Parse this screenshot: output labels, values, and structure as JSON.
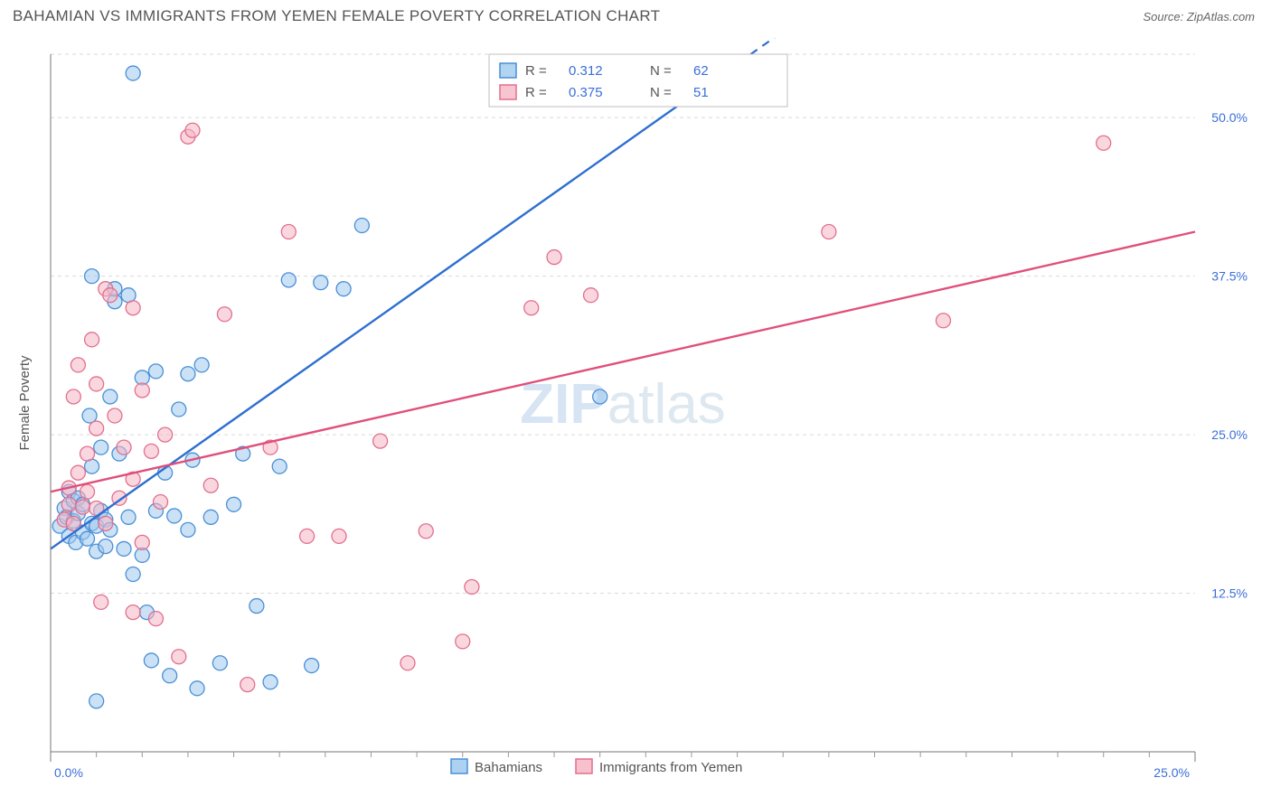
{
  "header": {
    "title": "BAHAMIAN VS IMMIGRANTS FROM YEMEN FEMALE POVERTY CORRELATION CHART",
    "source": "Source: ZipAtlas.com"
  },
  "watermark": {
    "part1": "ZIP",
    "part2": "atlas"
  },
  "chart": {
    "type": "scatter",
    "y_axis_label": "Female Poverty",
    "x_domain": [
      0,
      25
    ],
    "y_domain": [
      0,
      55
    ],
    "x_ticks_major": [
      0,
      25
    ],
    "x_ticks_major_labels": [
      "0.0%",
      "25.0%"
    ],
    "x_ticks_minor": [
      1,
      2,
      3,
      4,
      5,
      6,
      7,
      8,
      9,
      10,
      11,
      12,
      13,
      14,
      15,
      16,
      17,
      18,
      19,
      20,
      21,
      22,
      23,
      24
    ],
    "y_ticks": [
      12.5,
      25.0,
      37.5,
      50.0
    ],
    "y_tick_labels": [
      "12.5%",
      "25.0%",
      "37.5%",
      "50.0%"
    ],
    "y_grid": [
      12.5,
      25.0,
      37.5,
      50.0,
      55.0
    ],
    "background_color": "#ffffff",
    "grid_color": "#d9d9d9",
    "axis_color": "#777777",
    "series": [
      {
        "name": "Bahamians",
        "legend_label": "Bahamians",
        "marker_fill": "#9ec9ee",
        "marker_fill_opacity": 0.55,
        "marker_stroke": "#4a8fd6",
        "marker_r": 8,
        "line_color": "#2d6fd0",
        "line_dash_solid_to_x": 14.0,
        "line_slope": 2.55,
        "line_intercept": 16.0,
        "R": "0.312",
        "N": "62",
        "points": [
          [
            0.2,
            17.8
          ],
          [
            0.3,
            19.2
          ],
          [
            0.35,
            18.5
          ],
          [
            0.4,
            20.5
          ],
          [
            0.4,
            17.0
          ],
          [
            0.5,
            19.8
          ],
          [
            0.5,
            18.2
          ],
          [
            0.55,
            16.5
          ],
          [
            0.6,
            20.0
          ],
          [
            0.6,
            18.8
          ],
          [
            0.7,
            17.3
          ],
          [
            0.7,
            19.5
          ],
          [
            0.8,
            16.8
          ],
          [
            0.85,
            26.5
          ],
          [
            0.9,
            18.0
          ],
          [
            0.9,
            22.5
          ],
          [
            1.0,
            17.8
          ],
          [
            1.0,
            15.8
          ],
          [
            1.1,
            19.0
          ],
          [
            1.1,
            24.0
          ],
          [
            1.2,
            16.2
          ],
          [
            1.2,
            18.3
          ],
          [
            1.3,
            28.0
          ],
          [
            1.3,
            17.5
          ],
          [
            1.4,
            35.5
          ],
          [
            1.4,
            36.5
          ],
          [
            1.5,
            23.5
          ],
          [
            1.6,
            16.0
          ],
          [
            1.7,
            18.5
          ],
          [
            1.7,
            36.0
          ],
          [
            1.8,
            14.0
          ],
          [
            1.8,
            53.5
          ],
          [
            2.0,
            15.5
          ],
          [
            2.0,
            29.5
          ],
          [
            2.1,
            11.0
          ],
          [
            2.2,
            7.2
          ],
          [
            2.3,
            19.0
          ],
          [
            2.3,
            30.0
          ],
          [
            2.5,
            22.0
          ],
          [
            2.6,
            6.0
          ],
          [
            2.7,
            18.6
          ],
          [
            2.8,
            27.0
          ],
          [
            3.0,
            17.5
          ],
          [
            3.0,
            29.8
          ],
          [
            3.1,
            23.0
          ],
          [
            3.3,
            30.5
          ],
          [
            3.5,
            18.5
          ],
          [
            3.7,
            7.0
          ],
          [
            4.0,
            19.5
          ],
          [
            4.2,
            23.5
          ],
          [
            4.5,
            11.5
          ],
          [
            4.8,
            5.5
          ],
          [
            5.0,
            22.5
          ],
          [
            5.2,
            37.2
          ],
          [
            5.7,
            6.8
          ],
          [
            5.9,
            37.0
          ],
          [
            6.4,
            36.5
          ],
          [
            6.8,
            41.5
          ],
          [
            3.2,
            5.0
          ],
          [
            1.0,
            4.0
          ],
          [
            0.9,
            37.5
          ],
          [
            12.0,
            28.0
          ]
        ]
      },
      {
        "name": "Immigrants from Yemen",
        "legend_label": "Immigrants from Yemen",
        "marker_fill": "#f5b6c4",
        "marker_fill_opacity": 0.55,
        "marker_stroke": "#e26f8e",
        "marker_r": 8,
        "line_color": "#e04f7a",
        "line_dash_solid_to_x": 25.0,
        "line_slope": 0.82,
        "line_intercept": 20.5,
        "R": "0.375",
        "N": "51",
        "points": [
          [
            0.3,
            18.3
          ],
          [
            0.4,
            19.5
          ],
          [
            0.4,
            20.8
          ],
          [
            0.5,
            18.0
          ],
          [
            0.5,
            28.0
          ],
          [
            0.6,
            22.0
          ],
          [
            0.6,
            30.5
          ],
          [
            0.7,
            19.3
          ],
          [
            0.8,
            20.5
          ],
          [
            0.8,
            23.5
          ],
          [
            0.9,
            32.5
          ],
          [
            1.0,
            19.2
          ],
          [
            1.0,
            25.5
          ],
          [
            1.0,
            29.0
          ],
          [
            1.1,
            11.8
          ],
          [
            1.2,
            18.0
          ],
          [
            1.2,
            36.5
          ],
          [
            1.3,
            36.0
          ],
          [
            1.4,
            26.5
          ],
          [
            1.5,
            20.0
          ],
          [
            1.6,
            24.0
          ],
          [
            1.8,
            21.5
          ],
          [
            1.8,
            35.0
          ],
          [
            1.8,
            11.0
          ],
          [
            2.0,
            28.5
          ],
          [
            2.0,
            16.5
          ],
          [
            2.2,
            23.7
          ],
          [
            2.3,
            10.5
          ],
          [
            2.4,
            19.7
          ],
          [
            2.5,
            25.0
          ],
          [
            2.8,
            7.5
          ],
          [
            3.0,
            48.5
          ],
          [
            3.1,
            49.0
          ],
          [
            3.5,
            21.0
          ],
          [
            3.8,
            34.5
          ],
          [
            4.3,
            5.3
          ],
          [
            4.8,
            24.0
          ],
          [
            5.2,
            41.0
          ],
          [
            5.6,
            17.0
          ],
          [
            6.3,
            17.0
          ],
          [
            7.2,
            24.5
          ],
          [
            7.8,
            7.0
          ],
          [
            8.2,
            17.4
          ],
          [
            9.2,
            13.0
          ],
          [
            9.0,
            8.7
          ],
          [
            10.5,
            35.0
          ],
          [
            11.0,
            39.0
          ],
          [
            11.8,
            36.0
          ],
          [
            17.0,
            41.0
          ],
          [
            19.5,
            34.0
          ],
          [
            23.0,
            48.0
          ]
        ]
      }
    ]
  },
  "legend_bottom": {
    "series1_key": "Bahamians",
    "series2_key": "Immigrants from Yemen"
  },
  "stats_box": {
    "rows": [
      {
        "series_idx": 0,
        "R_label": "R  =",
        "N_label": "N  ="
      },
      {
        "series_idx": 1,
        "R_label": "R  =",
        "N_label": "N  ="
      }
    ]
  }
}
